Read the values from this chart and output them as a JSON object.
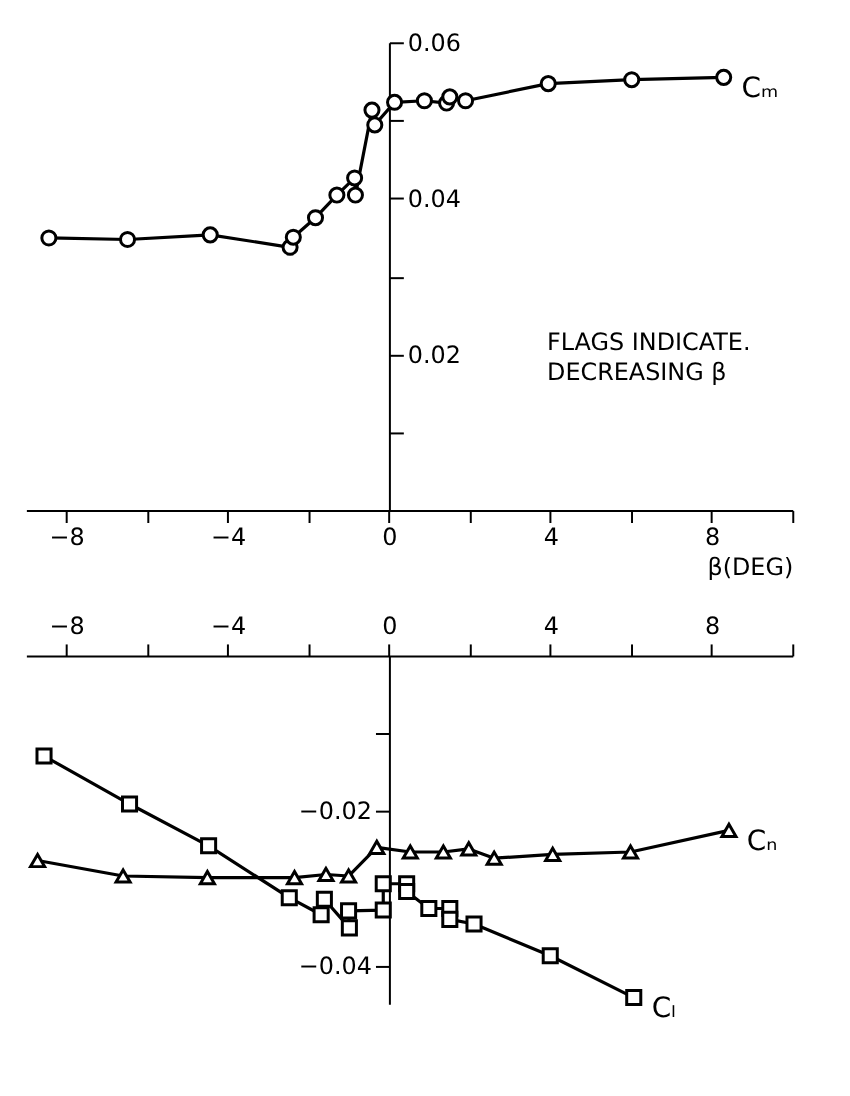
{
  "chart_data": [
    {
      "type": "line",
      "xlabel": "β(DEG)",
      "xlim": [
        -9,
        10
      ],
      "ylim": [
        0,
        0.06
      ],
      "xticks": [
        -8,
        {
          "value": -6,
          "label": null
        },
        -4,
        {
          "value": -2,
          "label": null
        },
        0,
        {
          "value": 2,
          "label": null
        },
        4,
        {
          "value": 6,
          "label": null
        },
        8,
        {
          "value": 10,
          "label": null
        }
      ],
      "yticks": [
        {
          "value": 0.01,
          "label": null
        },
        0.02,
        {
          "value": 0.03,
          "label": null
        },
        0.04,
        {
          "value": 0.05,
          "label": null
        },
        0.06
      ],
      "grid": false,
      "legend": false,
      "annotations": [
        "FLAGS INDICATE.\nDECREASING β"
      ],
      "series": [
        {
          "name": "Cₘ",
          "color": "#000000",
          "marker": "circle",
          "line_style": "solid",
          "x": [
            -8.43,
            -6.48,
            -4.43,
            -2.45,
            -2.37,
            -1.82,
            -1.29,
            -0.85,
            -0.83,
            -0.42,
            -0.35,
            0.14,
            0.88,
            1.43,
            1.51,
            1.9,
            3.95,
            6.02,
            8.3
          ],
          "values": [
            0.0349,
            0.0347,
            0.0353,
            0.0337,
            0.035,
            0.0375,
            0.0404,
            0.0426,
            0.0404,
            0.0513,
            0.0494,
            0.0523,
            0.0525,
            0.0522,
            0.053,
            0.0525,
            0.0547,
            0.0552,
            0.0555
          ]
        }
      ]
    },
    {
      "type": "line",
      "xlim": [
        -9,
        10
      ],
      "ylim": [
        -0.045,
        0
      ],
      "xticks": [
        -8,
        {
          "value": -6,
          "label": null
        },
        -4,
        {
          "value": -2,
          "label": null
        },
        0,
        {
          "value": 2,
          "label": null
        },
        4,
        {
          "value": 6,
          "label": null
        },
        8,
        {
          "value": 10,
          "label": null
        }
      ],
      "yticks": [
        {
          "value": -0.01,
          "label": null
        },
        -0.02,
        {
          "value": -0.03,
          "label": null
        },
        -0.04
      ],
      "grid": false,
      "legend": false,
      "series": [
        {
          "name": "Cₙ",
          "color": "#000000",
          "marker": "triangle",
          "line_style": "solid",
          "x": [
            -8.71,
            -6.59,
            -4.5,
            -2.34,
            -1.56,
            -1.0,
            -0.3,
            0.53,
            1.35,
            1.98,
            2.61,
            4.06,
            5.99,
            8.43
          ],
          "values": [
            -0.0265,
            -0.0285,
            -0.0287,
            -0.0287,
            -0.0283,
            -0.0285,
            -0.0248,
            -0.0254,
            -0.0254,
            -0.025,
            -0.0262,
            -0.0257,
            -0.0254,
            -0.0226
          ]
        },
        {
          "name": "Cₗ",
          "color": "#000000",
          "marker": "square",
          "line_style": "solid",
          "x": [
            -8.55,
            -6.43,
            -4.47,
            -2.47,
            -1.68,
            -1.6,
            -0.98,
            -1.0,
            -0.14,
            -0.14,
            0.44,
            0.44,
            0.99,
            1.51,
            1.51,
            2.11,
            4.0,
            6.07
          ],
          "values": [
            -0.013,
            -0.0192,
            -0.0246,
            -0.0313,
            -0.0335,
            -0.0315,
            -0.0352,
            -0.033,
            -0.0329,
            -0.0295,
            -0.0295,
            -0.0305,
            -0.0327,
            -0.0327,
            -0.0341,
            -0.0347,
            -0.0388,
            -0.0442
          ]
        }
      ]
    }
  ]
}
